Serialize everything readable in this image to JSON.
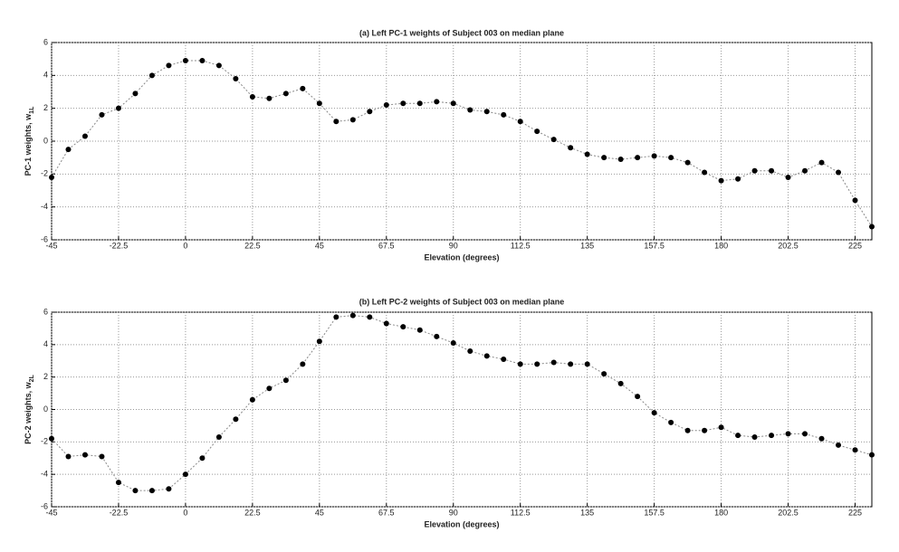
{
  "chart_data": [
    {
      "type": "line",
      "title": "(a) Left PC-1 weights of Subject 003 on median plane",
      "xlabel": "Elevation (degrees)",
      "ylabel": "PC-1 weights, w",
      "ylabel_subscript": "1L",
      "x": [
        -45,
        -39.375,
        -33.75,
        -28.125,
        -22.5,
        -16.875,
        -11.25,
        -5.625,
        0,
        5.625,
        11.25,
        16.875,
        22.5,
        28.125,
        33.75,
        39.375,
        45,
        50.625,
        56.25,
        61.875,
        67.5,
        73.125,
        78.75,
        84.375,
        90,
        95.625,
        101.25,
        106.875,
        112.5,
        118.125,
        123.75,
        129.375,
        135,
        140.625,
        146.25,
        151.875,
        157.5,
        163.125,
        168.75,
        174.375,
        180,
        185.625,
        191.25,
        196.875,
        202.5,
        208.125,
        213.75,
        219.375,
        225,
        230.625
      ],
      "values": [
        -2.2,
        -0.5,
        0.3,
        1.6,
        2.0,
        2.9,
        4.0,
        4.6,
        4.9,
        4.9,
        4.6,
        3.8,
        2.7,
        2.6,
        2.9,
        3.2,
        2.3,
        1.2,
        1.3,
        1.8,
        2.2,
        2.3,
        2.3,
        2.4,
        2.3,
        1.9,
        1.8,
        1.6,
        1.2,
        0.6,
        0.1,
        -0.4,
        -0.8,
        -1.0,
        -1.1,
        -1.0,
        -0.9,
        -1.0,
        -1.3,
        -1.9,
        -2.4,
        -2.3,
        -1.8,
        -1.8,
        -2.2,
        -1.8,
        -1.3,
        -1.9,
        -3.6,
        -5.2
      ],
      "color": "#000000",
      "line_color": "#888888",
      "xlim": [
        -45,
        230.625
      ],
      "xticks": [
        -45,
        -22.5,
        0,
        22.5,
        45,
        67.5,
        90,
        112.5,
        135,
        157.5,
        180,
        202.5,
        225
      ],
      "ylim": [
        -6,
        6
      ],
      "yticks": [
        -6,
        -4,
        -2,
        0,
        2,
        4,
        6
      ],
      "grid": true
    },
    {
      "type": "line",
      "title": "(b) Left PC-2 weights of Subject 003 on median plane",
      "xlabel": "Elevation (degrees)",
      "ylabel": "PC-2 weights, w",
      "ylabel_subscript": "2L",
      "x": [
        -45,
        -39.375,
        -33.75,
        -28.125,
        -22.5,
        -16.875,
        -11.25,
        -5.625,
        0,
        5.625,
        11.25,
        16.875,
        22.5,
        28.125,
        33.75,
        39.375,
        45,
        50.625,
        56.25,
        61.875,
        67.5,
        73.125,
        78.75,
        84.375,
        90,
        95.625,
        101.25,
        106.875,
        112.5,
        118.125,
        123.75,
        129.375,
        135,
        140.625,
        146.25,
        151.875,
        157.5,
        163.125,
        168.75,
        174.375,
        180,
        185.625,
        191.25,
        196.875,
        202.5,
        208.125,
        213.75,
        219.375,
        225,
        230.625
      ],
      "values": [
        -1.8,
        -2.9,
        -2.8,
        -2.9,
        -4.5,
        -5.0,
        -5.0,
        -4.9,
        -4.0,
        -3.0,
        -1.7,
        -0.6,
        0.6,
        1.3,
        1.8,
        2.8,
        4.2,
        5.7,
        5.8,
        5.7,
        5.3,
        5.1,
        4.9,
        4.5,
        4.1,
        3.6,
        3.3,
        3.1,
        2.8,
        2.8,
        2.9,
        2.8,
        2.8,
        2.2,
        1.6,
        0.8,
        -0.2,
        -0.8,
        -1.3,
        -1.3,
        -1.1,
        -1.6,
        -1.7,
        -1.6,
        -1.5,
        -1.5,
        -1.8,
        -2.2,
        -2.5,
        -2.8
      ],
      "color": "#000000",
      "line_color": "#888888",
      "xlim": [
        -45,
        230.625
      ],
      "xticks": [
        -45,
        -22.5,
        0,
        22.5,
        45,
        67.5,
        90,
        112.5,
        135,
        157.5,
        180,
        202.5,
        225
      ],
      "ylim": [
        -6,
        6
      ],
      "yticks": [
        -6,
        -4,
        -2,
        0,
        2,
        4,
        6
      ],
      "grid": true
    }
  ]
}
